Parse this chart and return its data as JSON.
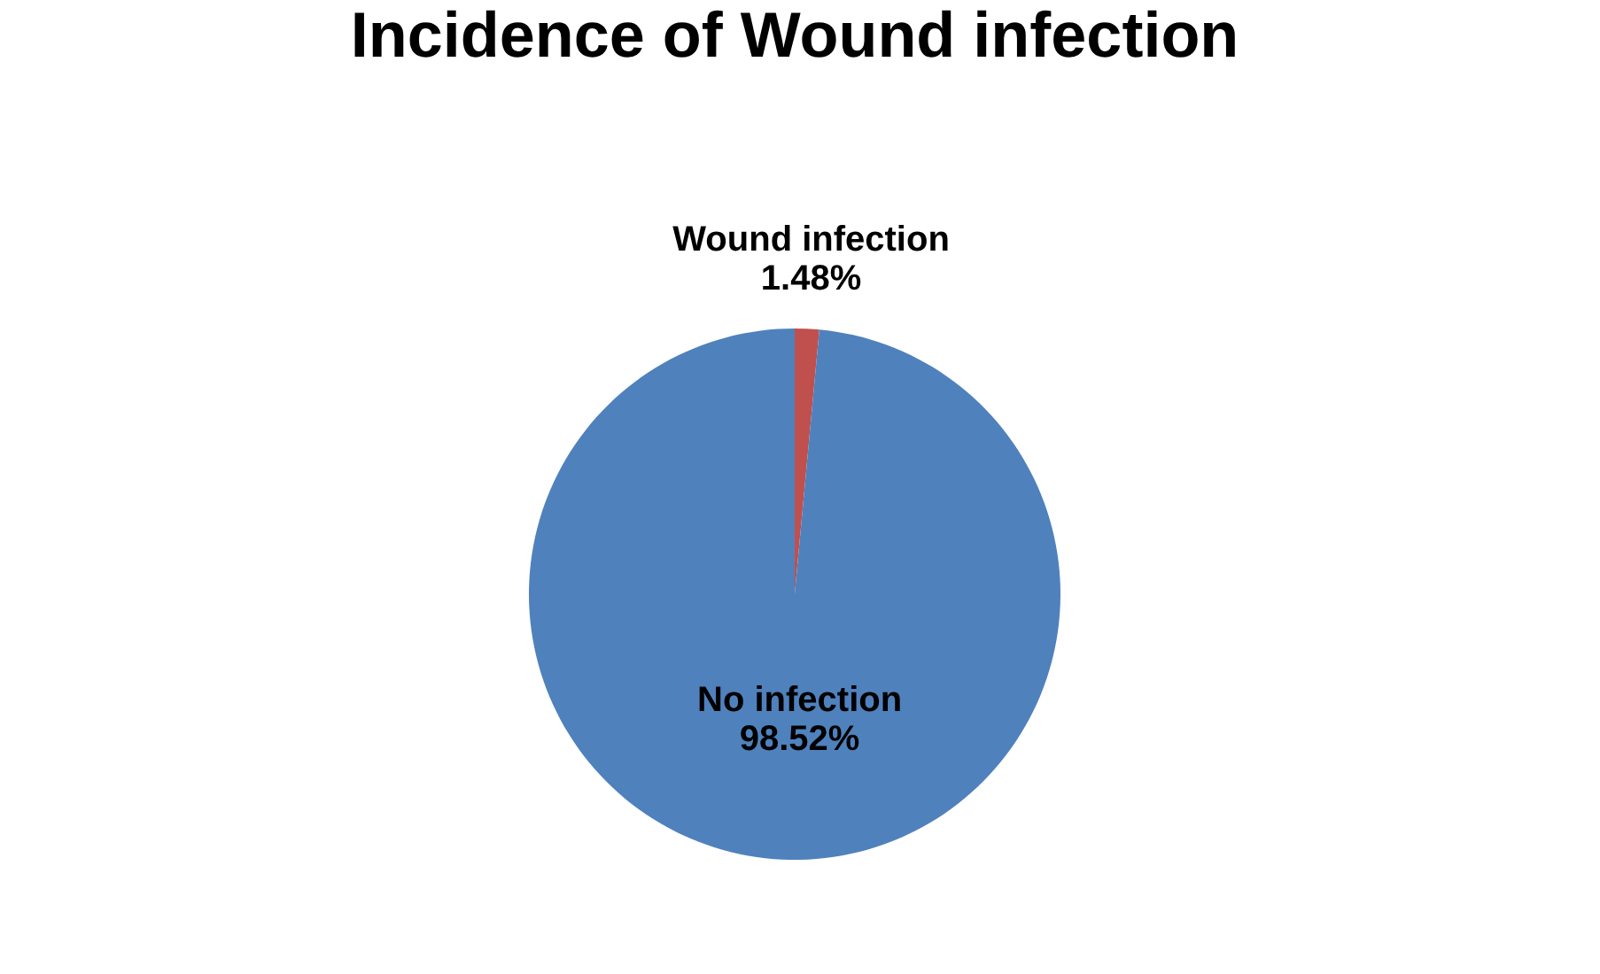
{
  "chart_data": {
    "type": "pie",
    "title": "Incidence of Wound infection",
    "categories": [
      "Wound infection",
      "No infection"
    ],
    "values": [
      1.48,
      98.52
    ],
    "colors": [
      "#c0504d",
      "#4f81bd"
    ],
    "value_labels": [
      "1.48%",
      "98.52%"
    ],
    "legend": false
  }
}
